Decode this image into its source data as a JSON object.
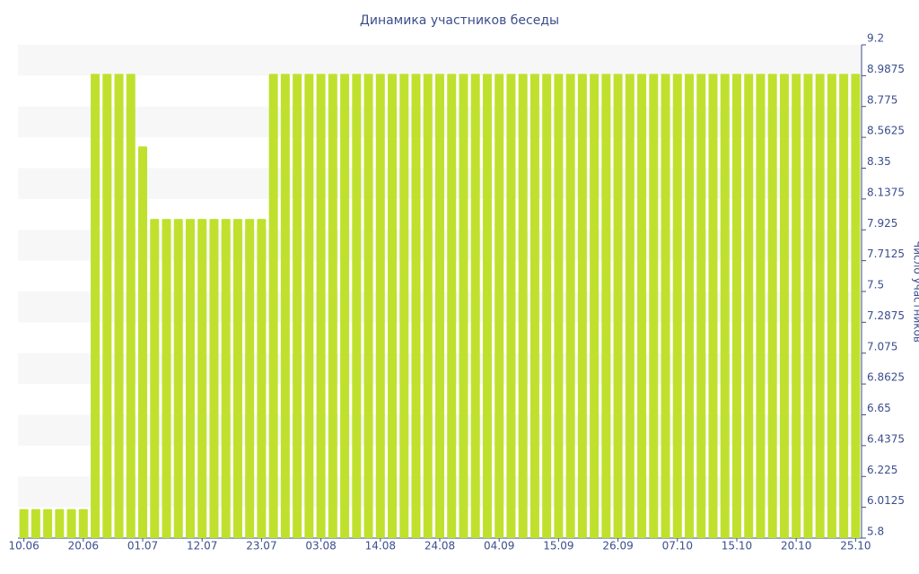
{
  "chart_data": {
    "type": "bar",
    "title": "Динамика участников беседы",
    "y_axis_label": "Число участников",
    "categories": [
      "10.06",
      null,
      null,
      null,
      null,
      "20.06",
      null,
      null,
      null,
      null,
      "01.07",
      null,
      null,
      null,
      null,
      "12.07",
      null,
      null,
      null,
      null,
      "23.07",
      null,
      null,
      null,
      null,
      "03.08",
      null,
      null,
      null,
      null,
      "14.08",
      null,
      null,
      null,
      null,
      "24.08",
      null,
      null,
      null,
      null,
      "04.09",
      null,
      null,
      null,
      null,
      "15.09",
      null,
      null,
      null,
      null,
      "26.09",
      null,
      null,
      null,
      null,
      "07.10",
      null,
      null,
      null,
      null,
      "15.10",
      null,
      null,
      null,
      null,
      "20.10",
      null,
      null,
      null,
      null,
      "25.10"
    ],
    "values": [
      6,
      6,
      6,
      6,
      6,
      6,
      9,
      9,
      9,
      9,
      8.5,
      8,
      8,
      8,
      8,
      8,
      8,
      8,
      8,
      8,
      8,
      9,
      9,
      9,
      9,
      9,
      9,
      9,
      9,
      9,
      9,
      9,
      9,
      9,
      9,
      9,
      9,
      9,
      9,
      9,
      9,
      9,
      9,
      9,
      9,
      9,
      9,
      9,
      9,
      9,
      9,
      9,
      9,
      9,
      9,
      9,
      9,
      9,
      9,
      9,
      9,
      9,
      9,
      9,
      9,
      9,
      9,
      9,
      9,
      9,
      9
    ],
    "color": "#bfe12e",
    "ylim": [
      5.8,
      9.2
    ],
    "yticks": [
      5.8,
      6.0125,
      6.225,
      6.4375,
      6.65,
      6.8625,
      7.075,
      7.2875,
      7.5,
      7.7125,
      7.925,
      8.1375,
      8.35,
      8.5625,
      8.775,
      8.9875,
      9.2
    ],
    "grid": true
  }
}
